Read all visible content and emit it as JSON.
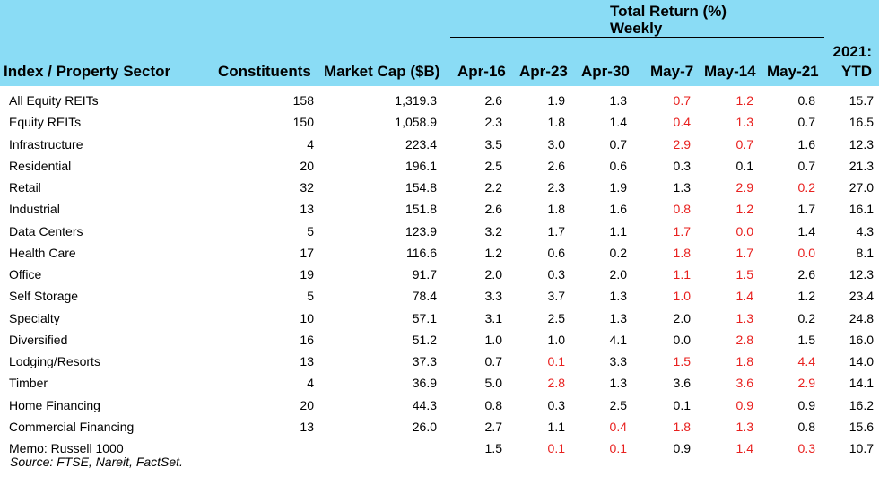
{
  "header": {
    "group_title": "Total Return (%)",
    "group_sub": "Weekly",
    "ytd_top": "2021:",
    "columns": [
      "Index / Property Sector",
      "Constituents",
      "Market Cap ($B)",
      "Apr-16",
      "Apr-23",
      "Apr-30",
      "May-7",
      "May-14",
      "May-21",
      "YTD"
    ]
  },
  "rows": [
    {
      "name": "All Equity REITs",
      "constituents": "158",
      "market_cap": "1,319.3",
      "apr16": "2.6",
      "apr23": "1.9",
      "apr30": "1.3",
      "may7": "0.7",
      "may14": "1.2",
      "may21": "0.8",
      "ytd": "15.7",
      "red": [
        "may7",
        "may14"
      ]
    },
    {
      "name": "Equity REITs",
      "constituents": "150",
      "market_cap": "1,058.9",
      "apr16": "2.3",
      "apr23": "1.8",
      "apr30": "1.4",
      "may7": "0.4",
      "may14": "1.3",
      "may21": "0.7",
      "ytd": "16.5",
      "red": [
        "may7",
        "may14"
      ]
    },
    {
      "name": "Infrastructure",
      "constituents": "4",
      "market_cap": "223.4",
      "apr16": "3.5",
      "apr23": "3.0",
      "apr30": "0.7",
      "may7": "2.9",
      "may14": "0.7",
      "may21": "1.6",
      "ytd": "12.3",
      "red": [
        "may7",
        "may14"
      ]
    },
    {
      "name": "Residential",
      "constituents": "20",
      "market_cap": "196.1",
      "apr16": "2.5",
      "apr23": "2.6",
      "apr30": "0.6",
      "may7": "0.3",
      "may14": "0.1",
      "may21": "0.7",
      "ytd": "21.3",
      "red": []
    },
    {
      "name": "Retail",
      "constituents": "32",
      "market_cap": "154.8",
      "apr16": "2.2",
      "apr23": "2.3",
      "apr30": "1.9",
      "may7": "1.3",
      "may14": "2.9",
      "may21": "0.2",
      "ytd": "27.0",
      "red": [
        "may14",
        "may21"
      ]
    },
    {
      "name": "Industrial",
      "constituents": "13",
      "market_cap": "151.8",
      "apr16": "2.6",
      "apr23": "1.8",
      "apr30": "1.6",
      "may7": "0.8",
      "may14": "1.2",
      "may21": "1.7",
      "ytd": "16.1",
      "red": [
        "may7",
        "may14"
      ]
    },
    {
      "name": "Data Centers",
      "constituents": "5",
      "market_cap": "123.9",
      "apr16": "3.2",
      "apr23": "1.7",
      "apr30": "1.1",
      "may7": "1.7",
      "may14": "0.0",
      "may21": "1.4",
      "ytd": "4.3",
      "red": [
        "may7",
        "may14"
      ]
    },
    {
      "name": "Health Care",
      "constituents": "17",
      "market_cap": "116.6",
      "apr16": "1.2",
      "apr23": "0.6",
      "apr30": "0.2",
      "may7": "1.8",
      "may14": "1.7",
      "may21": "0.0",
      "ytd": "8.1",
      "red": [
        "may7",
        "may14",
        "may21"
      ]
    },
    {
      "name": "Office",
      "constituents": "19",
      "market_cap": "91.7",
      "apr16": "2.0",
      "apr23": "0.3",
      "apr30": "2.0",
      "may7": "1.1",
      "may14": "1.5",
      "may21": "2.6",
      "ytd": "12.3",
      "red": [
        "may7",
        "may14"
      ]
    },
    {
      "name": "Self Storage",
      "constituents": "5",
      "market_cap": "78.4",
      "apr16": "3.3",
      "apr23": "3.7",
      "apr30": "1.3",
      "may7": "1.0",
      "may14": "1.4",
      "may21": "1.2",
      "ytd": "23.4",
      "red": [
        "may7",
        "may14"
      ]
    },
    {
      "name": "Specialty",
      "constituents": "10",
      "market_cap": "57.1",
      "apr16": "3.1",
      "apr23": "2.5",
      "apr30": "1.3",
      "may7": "2.0",
      "may14": "1.3",
      "may21": "0.2",
      "ytd": "24.8",
      "red": [
        "may14"
      ]
    },
    {
      "name": "Diversified",
      "constituents": "16",
      "market_cap": "51.2",
      "apr16": "1.0",
      "apr23": "1.0",
      "apr30": "4.1",
      "may7": "0.0",
      "may14": "2.8",
      "may21": "1.5",
      "ytd": "16.0",
      "red": [
        "may14"
      ]
    },
    {
      "name": "Lodging/Resorts",
      "constituents": "13",
      "market_cap": "37.3",
      "apr16": "0.7",
      "apr23": "0.1",
      "apr30": "3.3",
      "may7": "1.5",
      "may14": "1.8",
      "may21": "4.4",
      "ytd": "14.0",
      "red": [
        "apr23",
        "may7",
        "may14",
        "may21"
      ]
    },
    {
      "name": "Timber",
      "constituents": "4",
      "market_cap": "36.9",
      "apr16": "5.0",
      "apr23": "2.8",
      "apr30": "1.3",
      "may7": "3.6",
      "may14": "3.6",
      "may21": "2.9",
      "ytd": "14.1",
      "red": [
        "apr23",
        "may14",
        "may21"
      ]
    },
    {
      "name": "Home Financing",
      "constituents": "20",
      "market_cap": "44.3",
      "apr16": "0.8",
      "apr23": "0.3",
      "apr30": "2.5",
      "may7": "0.1",
      "may14": "0.9",
      "may21": "0.9",
      "ytd": "16.2",
      "red": [
        "may14"
      ]
    },
    {
      "name": "Commercial Financing",
      "constituents": "13",
      "market_cap": "26.0",
      "apr16": "2.7",
      "apr23": "1.1",
      "apr30": "0.4",
      "may7": "1.8",
      "may14": "1.3",
      "may21": "0.8",
      "ytd": "15.6",
      "red": [
        "apr30",
        "may7",
        "may14"
      ]
    },
    {
      "name": "Memo: Russell 1000",
      "constituents": "",
      "market_cap": "",
      "apr16": "1.5",
      "apr23": "0.1",
      "apr30": "0.1",
      "may7": "0.9",
      "may14": "1.4",
      "may21": "0.3",
      "ytd": "10.7",
      "red": [
        "apr23",
        "apr30",
        "may14",
        "may21"
      ]
    }
  ],
  "source": "Source: FTSE, Nareit, FactSet.",
  "colors": {
    "header_bg": "#8adcf5",
    "negative": "#e8201e"
  }
}
